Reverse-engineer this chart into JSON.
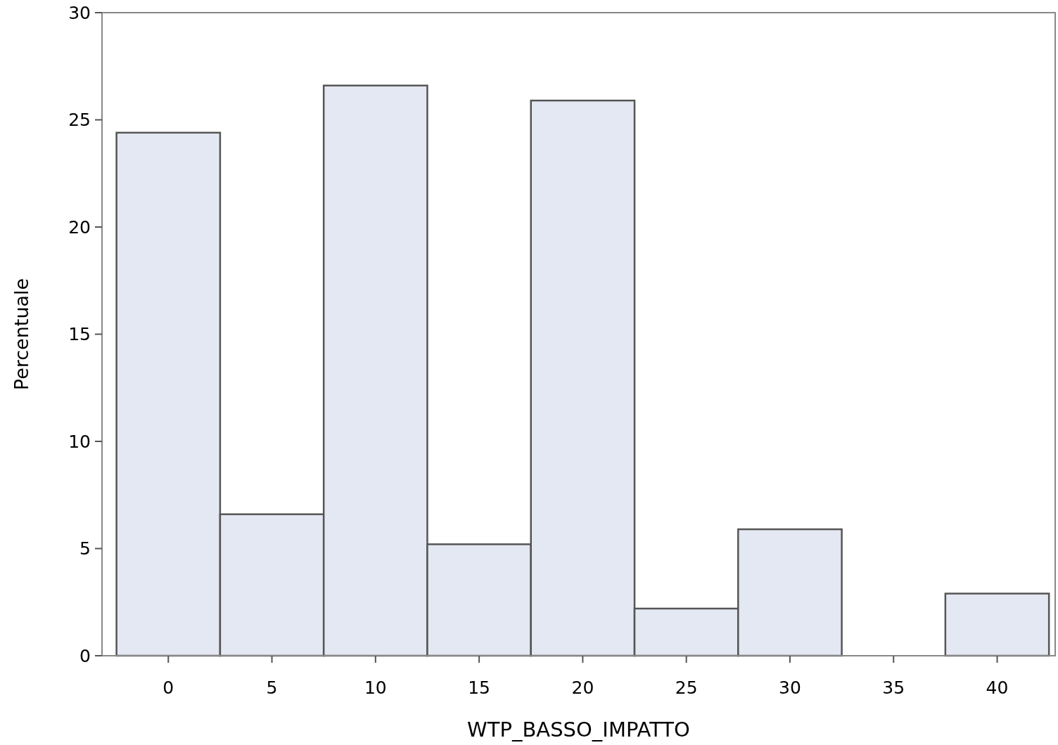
{
  "chart_data": {
    "type": "histogram",
    "xlabel": "WTP_BASSO_IMPATTO",
    "ylabel": "Percentuale",
    "bins": [
      -2.5,
      2.5,
      7.5,
      12.5,
      17.5,
      22.5,
      27.5,
      32.5,
      37.5,
      42.5
    ],
    "values": [
      24.4,
      6.6,
      26.6,
      5.2,
      25.9,
      2.2,
      5.9,
      0,
      2.9
    ],
    "color": "#e4e8f2",
    "xlim": [
      -3.2,
      42.8
    ],
    "xticks": [
      0,
      5,
      10,
      15,
      20,
      25,
      30,
      35,
      40
    ],
    "ylim": [
      0,
      30
    ],
    "yticks": [
      0,
      5,
      10,
      15,
      20,
      25,
      30
    ],
    "grid": false
  }
}
